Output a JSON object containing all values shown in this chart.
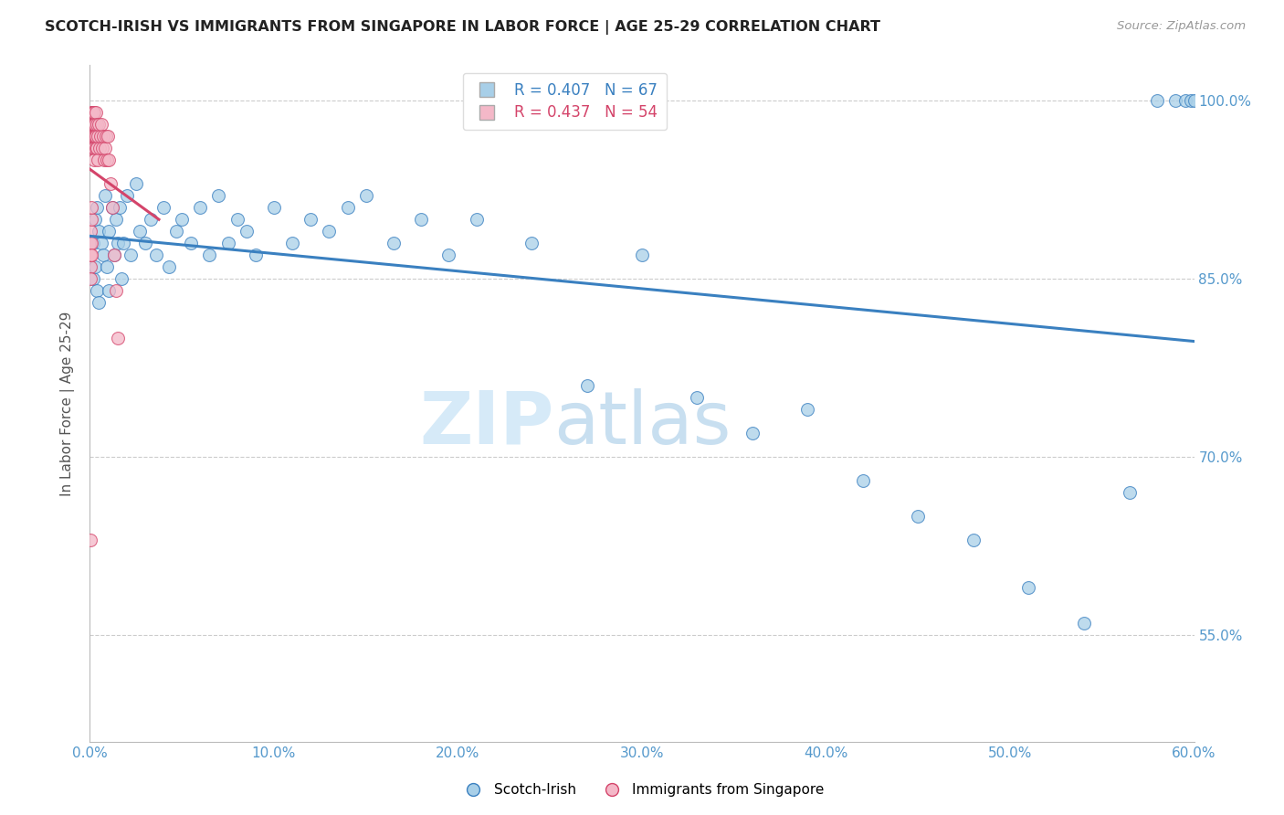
{
  "title": "SCOTCH-IRISH VS IMMIGRANTS FROM SINGAPORE IN LABOR FORCE | AGE 25-29 CORRELATION CHART",
  "source": "Source: ZipAtlas.com",
  "ylabel": "In Labor Force | Age 25-29",
  "legend_label1": "Scotch-Irish",
  "legend_label2": "Immigrants from Singapore",
  "R1": 0.407,
  "N1": 67,
  "R2": 0.437,
  "N2": 54,
  "color_blue": "#a8cfe8",
  "color_blue_line": "#3a80c0",
  "color_pink": "#f4b8c8",
  "color_pink_line": "#d4446a",
  "color_axis_text": "#5599cc",
  "xmin": 0.0,
  "xmax": 0.6,
  "ymin": 0.46,
  "ymax": 1.03,
  "yticks": [
    0.55,
    0.7,
    0.85,
    1.0
  ],
  "ytick_labels": [
    "55.0%",
    "70.0%",
    "85.0%",
    "100.0%"
  ],
  "xticks": [
    0.0,
    0.1,
    0.2,
    0.3,
    0.4,
    0.5,
    0.6
  ],
  "xtick_labels": [
    "0.0%",
    "10.0%",
    "20.0%",
    "30.0%",
    "40.0%",
    "50.0%",
    "60.0%"
  ],
  "blue_x": [
    0.002,
    0.002,
    0.003,
    0.003,
    0.004,
    0.004,
    0.005,
    0.005,
    0.006,
    0.007,
    0.008,
    0.009,
    0.01,
    0.01,
    0.012,
    0.013,
    0.014,
    0.015,
    0.016,
    0.017,
    0.018,
    0.02,
    0.022,
    0.025,
    0.027,
    0.03,
    0.033,
    0.036,
    0.04,
    0.043,
    0.047,
    0.05,
    0.055,
    0.06,
    0.065,
    0.07,
    0.075,
    0.08,
    0.085,
    0.09,
    0.1,
    0.11,
    0.12,
    0.13,
    0.14,
    0.15,
    0.165,
    0.18,
    0.195,
    0.21,
    0.24,
    0.27,
    0.3,
    0.33,
    0.36,
    0.39,
    0.42,
    0.45,
    0.48,
    0.51,
    0.54,
    0.565,
    0.58,
    0.59,
    0.595,
    0.598,
    0.6
  ],
  "blue_y": [
    0.88,
    0.85,
    0.9,
    0.86,
    0.91,
    0.84,
    0.89,
    0.83,
    0.88,
    0.87,
    0.92,
    0.86,
    0.89,
    0.84,
    0.91,
    0.87,
    0.9,
    0.88,
    0.91,
    0.85,
    0.88,
    0.92,
    0.87,
    0.93,
    0.89,
    0.88,
    0.9,
    0.87,
    0.91,
    0.86,
    0.89,
    0.9,
    0.88,
    0.91,
    0.87,
    0.92,
    0.88,
    0.9,
    0.89,
    0.87,
    0.91,
    0.88,
    0.9,
    0.89,
    0.91,
    0.92,
    0.88,
    0.9,
    0.87,
    0.9,
    0.88,
    0.76,
    0.87,
    0.75,
    0.72,
    0.74,
    0.68,
    0.65,
    0.63,
    0.59,
    0.56,
    0.67,
    1.0,
    1.0,
    1.0,
    1.0,
    1.0
  ],
  "pink_x": [
    0.0003,
    0.0003,
    0.0004,
    0.0004,
    0.0005,
    0.0005,
    0.0006,
    0.0007,
    0.0008,
    0.0009,
    0.001,
    0.001,
    0.0011,
    0.0012,
    0.0013,
    0.0014,
    0.0015,
    0.0016,
    0.0017,
    0.0018,
    0.0019,
    0.002,
    0.0021,
    0.0022,
    0.0023,
    0.0024,
    0.0025,
    0.0027,
    0.0029,
    0.0031,
    0.0033,
    0.0035,
    0.0037,
    0.0039,
    0.0042,
    0.0045,
    0.0048,
    0.0052,
    0.0056,
    0.006,
    0.0065,
    0.007,
    0.0075,
    0.008,
    0.0085,
    0.009,
    0.0095,
    0.01,
    0.011,
    0.012,
    0.013,
    0.014,
    0.015,
    0.0005
  ],
  "pink_y": [
    0.87,
    0.86,
    0.88,
    0.85,
    0.89,
    0.87,
    0.9,
    0.88,
    0.91,
    0.87,
    0.99,
    0.96,
    0.98,
    0.97,
    0.99,
    0.98,
    0.97,
    0.99,
    0.96,
    0.98,
    0.97,
    0.99,
    0.96,
    0.98,
    0.95,
    0.97,
    0.99,
    0.97,
    0.98,
    0.96,
    0.97,
    0.99,
    0.96,
    0.98,
    0.97,
    0.95,
    0.98,
    0.96,
    0.97,
    0.98,
    0.96,
    0.97,
    0.95,
    0.96,
    0.97,
    0.95,
    0.97,
    0.95,
    0.93,
    0.91,
    0.87,
    0.84,
    0.8,
    0.63
  ],
  "pink_lone_x": [
    0.0005
  ],
  "pink_lone_y": [
    0.63
  ],
  "watermark_zip": "ZIP",
  "watermark_atlas": "atlas",
  "watermark_color": "#d6eaf8"
}
